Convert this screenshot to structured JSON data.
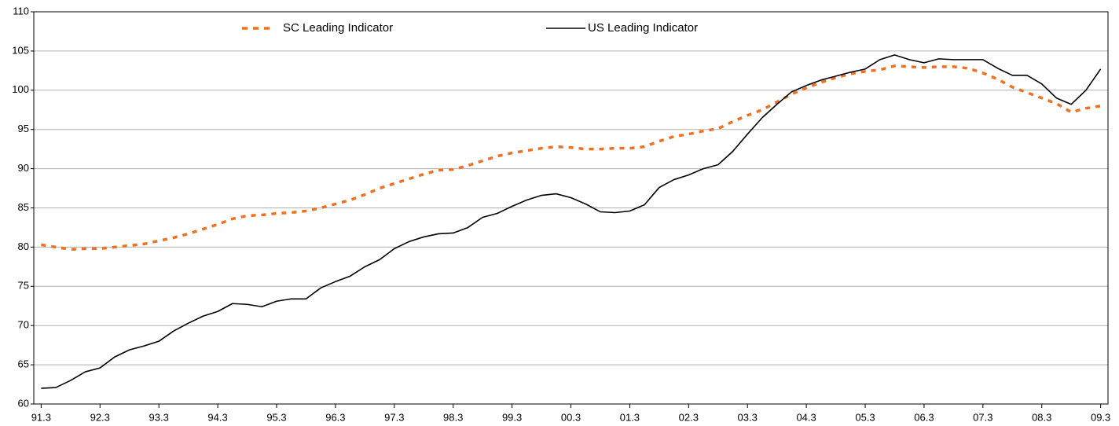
{
  "chart_data": {
    "type": "line",
    "categories": [
      "91.3",
      null,
      null,
      null,
      "92.3",
      null,
      null,
      null,
      "93.3",
      null,
      null,
      null,
      "94.3",
      null,
      null,
      null,
      "95.3",
      null,
      null,
      null,
      "96.3",
      null,
      null,
      null,
      "97.3",
      null,
      null,
      null,
      "98.3",
      null,
      null,
      null,
      "99.3",
      null,
      null,
      null,
      "00.3",
      null,
      null,
      null,
      "01.3",
      null,
      null,
      null,
      "02.3",
      null,
      null,
      null,
      "03.3",
      null,
      null,
      null,
      "04.3",
      null,
      null,
      null,
      "05.3",
      null,
      null,
      null,
      "06.3",
      null,
      null,
      null,
      "07.3",
      null,
      null,
      null,
      "08.3",
      null,
      null,
      null,
      "09.3"
    ],
    "series": [
      {
        "name": "SC Leading Indicator",
        "color": "#f07020",
        "dashed": true,
        "values": [
          80.3,
          80.0,
          79.7,
          79.8,
          79.8,
          80.0,
          80.2,
          80.4,
          80.8,
          81.2,
          81.7,
          82.3,
          82.9,
          83.6,
          84.0,
          84.1,
          84.3,
          84.4,
          84.6,
          85.0,
          85.5,
          86.0,
          86.7,
          87.5,
          88.1,
          88.7,
          89.3,
          89.8,
          89.9,
          90.4,
          91.0,
          91.6,
          92.0,
          92.3,
          92.6,
          92.8,
          92.7,
          92.5,
          92.5,
          92.6,
          92.6,
          92.8,
          93.5,
          94.1,
          94.4,
          94.8,
          95.1,
          96.0,
          96.8,
          97.5,
          98.5,
          99.5,
          100.3,
          101.0,
          101.6,
          102.1,
          102.4,
          102.6,
          103.1,
          103.0,
          102.9,
          103.0,
          103.0,
          102.8,
          102.2,
          101.4,
          100.4,
          99.7,
          99.0,
          98.3,
          97.2,
          97.7,
          98.0
        ]
      },
      {
        "name": "US Leading Indicator",
        "color": "#000000",
        "dashed": false,
        "values": [
          62.0,
          62.1,
          63.0,
          64.1,
          64.6,
          66.0,
          66.9,
          67.4,
          68.0,
          69.3,
          70.3,
          71.2,
          71.8,
          72.8,
          72.7,
          72.4,
          73.1,
          73.4,
          73.4,
          74.8,
          75.6,
          76.3,
          77.5,
          78.4,
          79.8,
          80.7,
          81.3,
          81.7,
          81.8,
          82.5,
          83.8,
          84.3,
          85.2,
          86.0,
          86.6,
          86.8,
          86.3,
          85.5,
          84.5,
          84.4,
          84.6,
          85.4,
          87.6,
          88.6,
          89.2,
          90.0,
          90.5,
          92.2,
          94.4,
          96.5,
          98.2,
          99.8,
          100.6,
          101.3,
          101.8,
          102.3,
          102.7,
          103.9,
          104.5,
          103.9,
          103.5,
          104.0,
          103.9,
          103.9,
          103.9,
          102.8,
          101.9,
          101.9,
          100.8,
          99.0,
          98.2,
          100.0,
          102.7
        ]
      }
    ],
    "ylim": [
      60,
      110
    ],
    "yticks": [
      60,
      65,
      70,
      75,
      80,
      85,
      90,
      95,
      100,
      105,
      110
    ],
    "grid": true,
    "legend": "top"
  }
}
